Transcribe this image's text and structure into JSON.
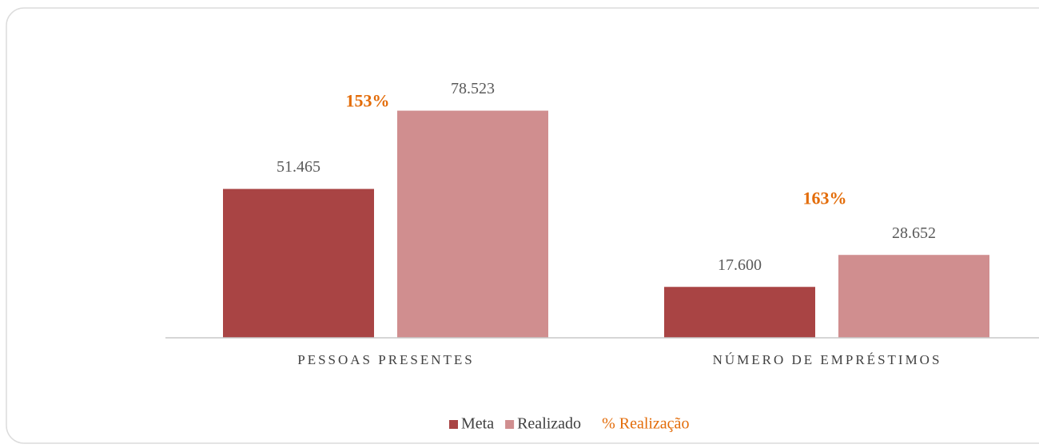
{
  "chart_data": {
    "type": "bar",
    "categories": [
      "PESSOAS PRESENTES",
      "NÚMERO DE EMPRÉSTIMOS"
    ],
    "series": [
      {
        "name": "Meta",
        "color": "#a94444",
        "values": [
          51465,
          17600
        ],
        "value_labels": [
          "51.465",
          "17.600"
        ]
      },
      {
        "name": "Realizado",
        "color": "#d08e8f",
        "values": [
          78523,
          28652
        ],
        "value_labels": [
          "78.523",
          "28.652"
        ]
      },
      {
        "name": "% Realização",
        "color": "#e36c09",
        "values": [
          153,
          163
        ],
        "value_labels": [
          "153%",
          "163%"
        ]
      }
    ],
    "ylim": [
      0,
      90000
    ],
    "legend": "bottom"
  }
}
